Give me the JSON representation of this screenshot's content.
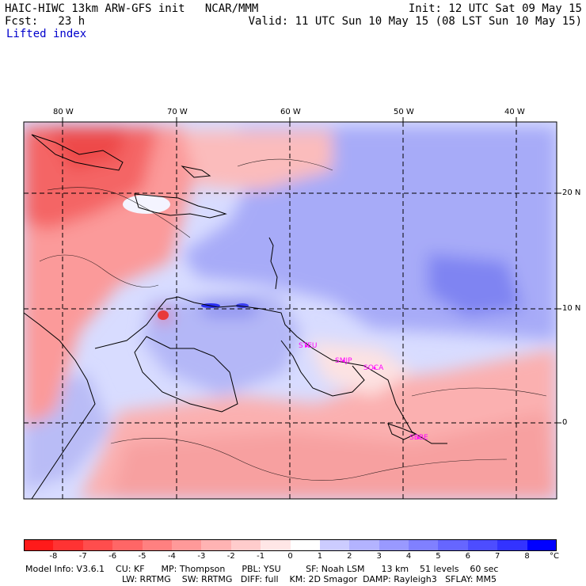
{
  "header": {
    "title": "HAIC-HIWC 13km ARW-GFS init   NCAR/MMM",
    "init": "Init: 12 UTC Sat 09 May 15",
    "fcst": "Fcst:   23 h",
    "valid": "Valid: 11 UTC Sun 10 May 15 (08 LST Sun 10 May 15)",
    "field": "Lifted index"
  },
  "map": {
    "lon_labels": [
      "80 W",
      "70 W",
      "60 W",
      "50 W",
      "40 W"
    ],
    "lat_labels": [
      "20 N",
      "10 N",
      "0"
    ],
    "stations": [
      "STEU",
      "SMJP",
      "SOCA",
      "SBBE"
    ],
    "colors": {
      "unstable": "#ff0000",
      "neutral": "#ffffff",
      "stable": "#0000ff",
      "station": "#ff00ff"
    }
  },
  "colorbar": {
    "ticks": [
      "-8",
      "-7",
      "-6",
      "-5",
      "-4",
      "-3",
      "-2",
      "-1",
      "0",
      "1",
      "2",
      "3",
      "4",
      "5",
      "6",
      "7",
      "8"
    ],
    "unit": "°C",
    "colors": [
      "#ff1a1a",
      "#ff3333",
      "#ff4d4d",
      "#ff6666",
      "#ff8080",
      "#ff9999",
      "#ffb3b3",
      "#ffcccc",
      "#ffe6e6",
      "#ffffff",
      "#ccccff",
      "#b3b3ff",
      "#9999ff",
      "#8080ff",
      "#6666ff",
      "#4d4dff",
      "#3333ff",
      "#0000ff"
    ]
  },
  "footer": {
    "line1": "Model Info: V3.6.1    CU: KF      MP: Thompson      PBL: YSU         SF: Noah LSM      13 km    51 levels    60 sec",
    "line2": "LW: RRTMG    SW: RRTMG   DIFF: full    KM: 2D Smagor  DAMP: Rayleigh3   SFLAY: MM5"
  }
}
